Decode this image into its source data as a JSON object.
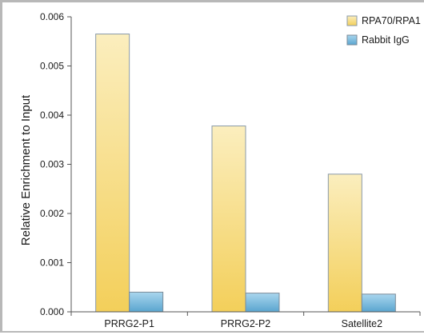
{
  "chart_data": {
    "type": "bar",
    "categories": [
      "PRRG2-P1",
      "PRRG2-P2",
      "Satellite2"
    ],
    "series": [
      {
        "name": "RPA70/RPA1",
        "values": [
          0.00565,
          0.00378,
          0.0028
        ],
        "color": "#f6d879"
      },
      {
        "name": "Rabbit IgG",
        "values": [
          0.0004,
          0.00038,
          0.00036
        ],
        "color": "#6fb1d6"
      }
    ],
    "ylabel": "Relative Enrichment to Input",
    "xlabel": "",
    "ylim": [
      0,
      0.006
    ],
    "yticks": [
      "0.000",
      "0.001",
      "0.002",
      "0.003",
      "0.004",
      "0.005",
      "0.006"
    ],
    "grid": false,
    "legend_position": "top-right"
  }
}
